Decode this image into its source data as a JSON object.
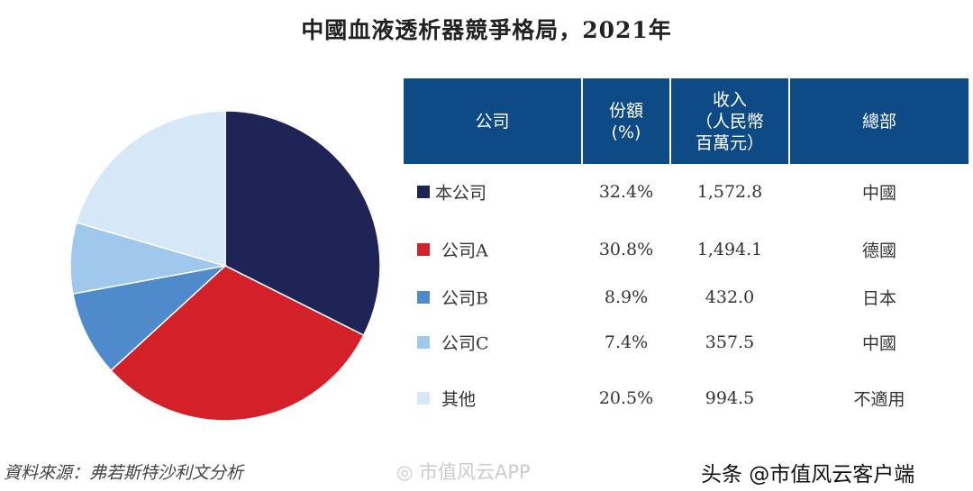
{
  "chart_data": {
    "type": "pie",
    "title": "中國血液透析器競爭格局，2021年",
    "start": "top",
    "direction": "clockwise",
    "columns": [
      "公司",
      "份額\n(%)",
      "收入\n（人民幣\n百萬元）",
      "總部"
    ],
    "rows": [
      {
        "label": "本公司",
        "share": 32.4,
        "share_text": "32.4%",
        "revenue": "1,572.8",
        "hq": "中國",
        "color": "#1e2456"
      },
      {
        "label": "公司A",
        "share": 30.8,
        "share_text": "30.8%",
        "revenue": "1,494.1",
        "hq": "德國",
        "color": "#d42028"
      },
      {
        "label": "公司B",
        "share": 8.9,
        "share_text": "8.9%",
        "revenue": "432.0",
        "hq": "日本",
        "color": "#4f8acb"
      },
      {
        "label": "公司C",
        "share": 7.4,
        "share_text": "7.4%",
        "revenue": "357.5",
        "hq": "中國",
        "color": "#9fc8ec"
      },
      {
        "label": "其他",
        "share": 20.5,
        "share_text": "20.5%",
        "revenue": "994.5",
        "hq": "不適用",
        "color": "#d6e8f7"
      }
    ]
  },
  "source": "資料來源：弗若斯特沙利文分析",
  "watermarks": {
    "weibo": "市值风云APP",
    "toutiao": "头条 @市值风云客户端"
  },
  "header_color": "#0d4a86"
}
